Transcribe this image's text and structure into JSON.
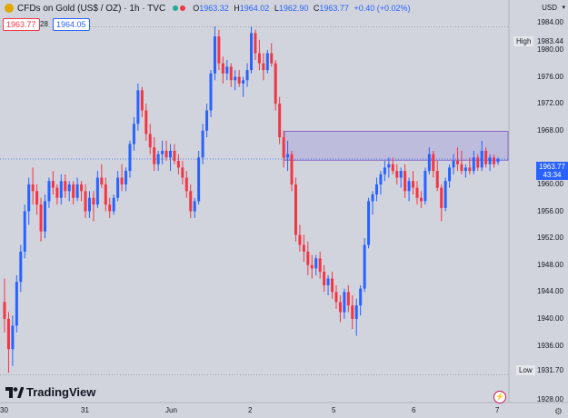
{
  "header": {
    "symbol": "CFDs on Gold (US$ / OZ) · 1h · TVC",
    "o_label": "O",
    "o_value": "1963.32",
    "h_label": "H",
    "h_value": "1964.02",
    "l_label": "L",
    "l_value": "1962.90",
    "c_label": "C",
    "c_value": "1963.77",
    "change": "+0.40 (+0.02%)"
  },
  "trading": {
    "sell_price": "1963.77",
    "quantity": "28",
    "buy_price": "1964.05"
  },
  "currency": "USD",
  "price_axis": {
    "ticks": [
      "1984.00",
      "1980.00",
      "1976.00",
      "1972.00",
      "1968.00",
      "1960.00",
      "1956.00",
      "1952.00",
      "1948.00",
      "1944.00",
      "1940.00",
      "1936.00",
      "1928.00"
    ],
    "high_label": "High",
    "high_value": "1983.44",
    "low_label": "Low",
    "low_value": "1931.70",
    "current_price": "1963.77",
    "countdown": "43:34"
  },
  "time_axis": [
    "30",
    "31",
    "Jun",
    "2",
    "5",
    "6",
    "7"
  ],
  "branding": "TradingView",
  "colors": {
    "up": "#2962ff",
    "down": "#f23645",
    "background": "#d1d4dc",
    "rectangle": "#9c8fe0"
  },
  "chart_data": {
    "type": "candlestick",
    "title": "CFDs on Gold (US$ / OZ) · 1h · TVC",
    "y_unit": "USD",
    "ylim": [
      1926.8,
      1985.8
    ],
    "grid": false,
    "high_line": 1983.44,
    "low_line": 1931.7,
    "last_price": 1963.77,
    "annotation_rectangle": {
      "price_top": 1967.9,
      "price_bottom": 1963.6,
      "from_day": "2",
      "to_day": "7"
    },
    "candles": [
      [
        1942.5,
        1946.0,
        1938.0,
        1940.0
      ],
      [
        1940.0,
        1941.0,
        1932.0,
        1935.5
      ],
      [
        1935.5,
        1940.5,
        1933.0,
        1939.0
      ],
      [
        1939.0,
        1946.5,
        1938.0,
        1945.5
      ],
      [
        1945.5,
        1951.0,
        1944.0,
        1950.0
      ],
      [
        1950.0,
        1957.0,
        1949.0,
        1956.0
      ],
      [
        1956.0,
        1961.0,
        1954.0,
        1960.0
      ],
      [
        1960.0,
        1962.5,
        1957.0,
        1959.0
      ],
      [
        1959.0,
        1960.0,
        1955.5,
        1957.0
      ],
      [
        1957.0,
        1958.0,
        1951.5,
        1953.0
      ],
      [
        1953.0,
        1958.5,
        1952.0,
        1957.5
      ],
      [
        1957.5,
        1961.0,
        1956.5,
        1960.5
      ],
      [
        1960.5,
        1962.0,
        1958.5,
        1959.5
      ],
      [
        1959.5,
        1960.0,
        1957.0,
        1958.0
      ],
      [
        1958.0,
        1961.5,
        1957.0,
        1960.5
      ],
      [
        1960.5,
        1961.5,
        1958.0,
        1959.0
      ],
      [
        1959.0,
        1960.5,
        1957.5,
        1960.0
      ],
      [
        1960.0,
        1960.5,
        1957.0,
        1958.0
      ],
      [
        1958.0,
        1961.0,
        1957.5,
        1960.0
      ],
      [
        1960.0,
        1960.5,
        1957.5,
        1959.0
      ],
      [
        1959.0,
        1960.0,
        1955.0,
        1956.0
      ],
      [
        1956.0,
        1959.0,
        1955.0,
        1958.0
      ],
      [
        1958.0,
        1959.0,
        1954.5,
        1957.0
      ],
      [
        1957.0,
        1962.0,
        1956.5,
        1961.0
      ],
      [
        1961.0,
        1963.0,
        1959.5,
        1960.0
      ],
      [
        1960.0,
        1961.0,
        1956.0,
        1957.0
      ],
      [
        1957.0,
        1958.0,
        1955.0,
        1956.0
      ],
      [
        1956.0,
        1958.5,
        1955.5,
        1958.0
      ],
      [
        1958.0,
        1962.0,
        1957.5,
        1961.0
      ],
      [
        1961.0,
        1963.0,
        1959.0,
        1960.0
      ],
      [
        1960.0,
        1962.5,
        1959.0,
        1962.0
      ],
      [
        1962.0,
        1966.5,
        1961.0,
        1966.0
      ],
      [
        1966.0,
        1970.0,
        1965.0,
        1969.0
      ],
      [
        1969.0,
        1975.0,
        1968.0,
        1974.0
      ],
      [
        1974.0,
        1974.5,
        1970.0,
        1971.0
      ],
      [
        1971.0,
        1972.0,
        1966.5,
        1967.5
      ],
      [
        1967.5,
        1969.0,
        1964.5,
        1965.5
      ],
      [
        1965.5,
        1967.0,
        1962.0,
        1963.0
      ],
      [
        1963.0,
        1965.0,
        1962.0,
        1964.5
      ],
      [
        1964.5,
        1966.5,
        1963.0,
        1965.0
      ],
      [
        1965.0,
        1966.5,
        1963.5,
        1964.0
      ],
      [
        1964.0,
        1966.0,
        1962.0,
        1965.0
      ],
      [
        1965.0,
        1966.0,
        1963.0,
        1963.5
      ],
      [
        1963.5,
        1964.5,
        1961.5,
        1962.5
      ],
      [
        1962.5,
        1963.5,
        1960.0,
        1961.0
      ],
      [
        1961.0,
        1962.0,
        1958.0,
        1959.0
      ],
      [
        1959.0,
        1960.0,
        1955.0,
        1956.0
      ],
      [
        1956.0,
        1958.0,
        1955.0,
        1957.5
      ],
      [
        1957.5,
        1965.0,
        1957.0,
        1964.0
      ],
      [
        1964.0,
        1969.0,
        1963.0,
        1968.0
      ],
      [
        1968.0,
        1972.0,
        1967.0,
        1971.0
      ],
      [
        1971.0,
        1977.0,
        1970.0,
        1976.5
      ],
      [
        1976.5,
        1983.5,
        1975.5,
        1982.0
      ],
      [
        1982.0,
        1983.0,
        1977.0,
        1978.0
      ],
      [
        1978.0,
        1979.0,
        1975.0,
        1976.5
      ],
      [
        1976.5,
        1978.5,
        1975.5,
        1977.5
      ],
      [
        1977.5,
        1978.0,
        1974.5,
        1975.5
      ],
      [
        1975.5,
        1977.0,
        1974.0,
        1976.0
      ],
      [
        1976.0,
        1977.0,
        1974.5,
        1975.0
      ],
      [
        1975.0,
        1976.0,
        1973.0,
        1975.5
      ],
      [
        1975.5,
        1978.0,
        1974.5,
        1977.0
      ],
      [
        1977.0,
        1983.5,
        1976.5,
        1982.5
      ],
      [
        1982.5,
        1983.0,
        1978.5,
        1979.5
      ],
      [
        1979.5,
        1981.5,
        1977.0,
        1978.0
      ],
      [
        1978.0,
        1979.5,
        1975.5,
        1977.0
      ],
      [
        1977.0,
        1980.0,
        1976.5,
        1979.5
      ],
      [
        1979.5,
        1981.0,
        1977.5,
        1978.0
      ],
      [
        1978.0,
        1978.5,
        1971.0,
        1972.0
      ],
      [
        1972.0,
        1973.0,
        1966.0,
        1967.0
      ],
      [
        1967.0,
        1968.0,
        1962.5,
        1964.0
      ],
      [
        1964.0,
        1966.5,
        1962.0,
        1964.5
      ],
      [
        1964.5,
        1965.0,
        1959.0,
        1960.0
      ],
      [
        1960.0,
        1961.0,
        1951.5,
        1952.5
      ],
      [
        1952.5,
        1954.0,
        1950.0,
        1951.0
      ],
      [
        1951.0,
        1952.5,
        1948.5,
        1950.0
      ],
      [
        1950.0,
        1951.5,
        1946.5,
        1948.0
      ],
      [
        1948.0,
        1949.5,
        1946.0,
        1947.5
      ],
      [
        1947.5,
        1949.5,
        1946.5,
        1949.0
      ],
      [
        1949.0,
        1950.0,
        1946.0,
        1947.0
      ],
      [
        1947.0,
        1948.0,
        1944.0,
        1945.0
      ],
      [
        1945.0,
        1946.5,
        1943.5,
        1946.0
      ],
      [
        1946.0,
        1947.0,
        1943.0,
        1944.0
      ],
      [
        1944.0,
        1945.0,
        1941.5,
        1942.5
      ],
      [
        1942.5,
        1943.5,
        1939.5,
        1941.0
      ],
      [
        1941.0,
        1944.5,
        1940.0,
        1944.0
      ],
      [
        1944.0,
        1945.0,
        1941.0,
        1942.0
      ],
      [
        1942.0,
        1943.5,
        1938.5,
        1940.0
      ],
      [
        1940.0,
        1943.0,
        1937.5,
        1942.0
      ],
      [
        1942.0,
        1945.0,
        1940.5,
        1944.5
      ],
      [
        1944.5,
        1952.0,
        1944.0,
        1951.0
      ],
      [
        1951.0,
        1958.0,
        1950.5,
        1957.5
      ],
      [
        1957.5,
        1959.0,
        1955.5,
        1958.5
      ],
      [
        1958.5,
        1961.0,
        1957.5,
        1960.0
      ],
      [
        1960.0,
        1962.0,
        1958.5,
        1961.5
      ],
      [
        1961.5,
        1963.5,
        1960.5,
        1962.5
      ],
      [
        1962.5,
        1964.0,
        1961.0,
        1963.0
      ],
      [
        1963.0,
        1964.0,
        1961.5,
        1962.0
      ],
      [
        1962.0,
        1963.0,
        1960.0,
        1961.0
      ],
      [
        1961.0,
        1962.5,
        1959.5,
        1962.0
      ],
      [
        1962.0,
        1963.0,
        1958.0,
        1959.0
      ],
      [
        1959.0,
        1961.0,
        1957.5,
        1960.5
      ],
      [
        1960.5,
        1962.0,
        1958.5,
        1959.5
      ],
      [
        1959.5,
        1960.5,
        1957.0,
        1958.0
      ],
      [
        1958.0,
        1959.0,
        1956.5,
        1957.5
      ],
      [
        1957.5,
        1962.5,
        1957.0,
        1962.0
      ],
      [
        1962.0,
        1965.5,
        1961.5,
        1964.5
      ],
      [
        1964.5,
        1965.0,
        1961.0,
        1962.0
      ],
      [
        1962.0,
        1963.5,
        1959.0,
        1959.5
      ],
      [
        1959.5,
        1960.0,
        1954.5,
        1956.5
      ],
      [
        1956.5,
        1961.0,
        1956.0,
        1960.5
      ],
      [
        1960.5,
        1963.0,
        1959.5,
        1962.5
      ],
      [
        1962.5,
        1964.5,
        1961.5,
        1963.5
      ],
      [
        1963.5,
        1965.5,
        1962.0,
        1963.0
      ],
      [
        1963.0,
        1965.0,
        1961.5,
        1962.0
      ],
      [
        1962.0,
        1963.0,
        1961.0,
        1962.5
      ],
      [
        1962.5,
        1964.0,
        1961.5,
        1962.0
      ],
      [
        1962.0,
        1965.0,
        1961.5,
        1964.0
      ],
      [
        1964.0,
        1964.5,
        1962.0,
        1962.5
      ],
      [
        1962.5,
        1966.5,
        1962.0,
        1965.0
      ],
      [
        1965.0,
        1965.5,
        1962.5,
        1963.0
      ],
      [
        1963.0,
        1964.5,
        1962.0,
        1964.0
      ],
      [
        1964.0,
        1964.5,
        1962.5,
        1963.0
      ],
      [
        1963.32,
        1964.02,
        1962.9,
        1963.77
      ]
    ]
  }
}
